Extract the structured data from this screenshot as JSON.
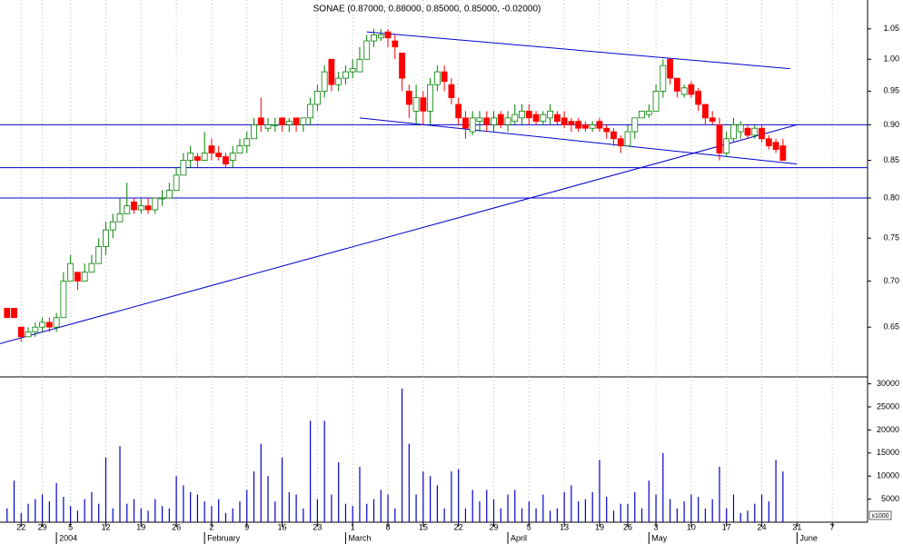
{
  "chart_data": [
    {
      "type": "candlestick",
      "title": "SONAE (0.87000, 0.88000, 0.85000, 0.85000, -0.02000)",
      "x": [
        0,
        1,
        2,
        3,
        4,
        5,
        6,
        7,
        8,
        9,
        10,
        11,
        12,
        13,
        14,
        15,
        16,
        17,
        18,
        19,
        20,
        21,
        22,
        23,
        24,
        25,
        26,
        27,
        28,
        29,
        30,
        31,
        32,
        33,
        34,
        35,
        36,
        37,
        38,
        39,
        40,
        41,
        42,
        43,
        44,
        45,
        46,
        47,
        48,
        49,
        50,
        51,
        52,
        53,
        54,
        55,
        56,
        57,
        58,
        59,
        60,
        61,
        62,
        63,
        64,
        65,
        66,
        67,
        68,
        69,
        70,
        71,
        72,
        73,
        74,
        75,
        76,
        77,
        78,
        79,
        80,
        81,
        82,
        83,
        84,
        85,
        86,
        87,
        88,
        89,
        90,
        91,
        92,
        93,
        94,
        95,
        96,
        97,
        98,
        99,
        100,
        101,
        102,
        103,
        104,
        105,
        106,
        107,
        108,
        109,
        110
      ],
      "open": [
        0.67,
        0.67,
        0.65,
        0.64,
        0.645,
        0.65,
        0.655,
        0.65,
        0.66,
        0.7,
        0.71,
        0.7,
        0.71,
        0.72,
        0.74,
        0.76,
        0.77,
        0.78,
        0.795,
        0.785,
        0.79,
        0.785,
        0.8,
        0.8,
        0.81,
        0.83,
        0.85,
        0.855,
        0.85,
        0.87,
        0.86,
        0.855,
        0.85,
        0.86,
        0.87,
        0.88,
        0.91,
        0.895,
        0.9,
        0.91,
        0.9,
        0.91,
        0.9,
        0.91,
        0.93,
        0.95,
        1.0,
        0.96,
        0.97,
        0.98,
        0.98,
        1.0,
        1.03,
        1.035,
        1.045,
        1.03,
        1.01,
        0.95,
        0.92,
        0.94,
        0.92,
        0.96,
        0.98,
        0.96,
        0.93,
        0.91,
        0.89,
        0.905,
        0.91,
        0.9,
        0.915,
        0.9,
        0.905,
        0.91,
        0.92,
        0.915,
        0.905,
        0.91,
        0.915,
        0.91,
        0.905,
        0.905,
        0.9,
        0.895,
        0.905,
        0.895,
        0.89,
        0.88,
        0.87,
        0.89,
        0.91,
        0.915,
        0.92,
        0.95,
        1.0,
        0.97,
        0.945,
        0.96,
        0.95,
        0.93,
        0.91,
        0.9,
        0.86,
        0.88,
        0.89,
        0.895,
        0.885,
        0.895,
        0.88,
        0.875,
        0.87
      ],
      "high": [
        0.67,
        0.67,
        0.65,
        0.65,
        0.655,
        0.66,
        0.66,
        0.665,
        0.71,
        0.73,
        0.71,
        0.72,
        0.73,
        0.75,
        0.77,
        0.78,
        0.8,
        0.82,
        0.8,
        0.8,
        0.8,
        0.8,
        0.81,
        0.82,
        0.84,
        0.86,
        0.87,
        0.86,
        0.89,
        0.88,
        0.87,
        0.86,
        0.87,
        0.88,
        0.89,
        0.91,
        0.94,
        0.91,
        0.91,
        0.91,
        0.91,
        0.91,
        0.91,
        0.94,
        0.96,
        0.99,
        1.0,
        0.98,
        0.99,
        1.0,
        1.02,
        1.04,
        1.05,
        1.05,
        1.05,
        1.04,
        1.01,
        0.96,
        0.96,
        0.95,
        0.97,
        0.99,
        0.99,
        0.97,
        0.94,
        0.92,
        0.92,
        0.92,
        0.92,
        0.92,
        0.92,
        0.92,
        0.93,
        0.93,
        0.93,
        0.92,
        0.92,
        0.93,
        0.92,
        0.92,
        0.91,
        0.91,
        0.905,
        0.905,
        0.91,
        0.9,
        0.895,
        0.885,
        0.9,
        0.91,
        0.92,
        0.93,
        0.96,
        1.0,
        1.0,
        0.97,
        0.96,
        0.965,
        0.955,
        0.93,
        0.92,
        0.91,
        0.89,
        0.91,
        0.905,
        0.9,
        0.9,
        0.9,
        0.885,
        0.88,
        0.88
      ],
      "low": [
        0.66,
        0.66,
        0.635,
        0.64,
        0.64,
        0.645,
        0.645,
        0.645,
        0.66,
        0.7,
        0.69,
        0.7,
        0.71,
        0.72,
        0.73,
        0.75,
        0.77,
        0.78,
        0.78,
        0.78,
        0.78,
        0.78,
        0.79,
        0.8,
        0.81,
        0.83,
        0.84,
        0.84,
        0.85,
        0.85,
        0.85,
        0.84,
        0.84,
        0.86,
        0.86,
        0.88,
        0.89,
        0.89,
        0.89,
        0.89,
        0.89,
        0.89,
        0.89,
        0.9,
        0.92,
        0.94,
        0.95,
        0.95,
        0.96,
        0.97,
        0.98,
        1.0,
        1.02,
        1.03,
        1.02,
        1.0,
        0.95,
        0.91,
        0.9,
        0.9,
        0.9,
        0.95,
        0.95,
        0.93,
        0.9,
        0.88,
        0.885,
        0.89,
        0.89,
        0.89,
        0.895,
        0.89,
        0.9,
        0.9,
        0.9,
        0.9,
        0.9,
        0.9,
        0.9,
        0.895,
        0.89,
        0.89,
        0.89,
        0.89,
        0.89,
        0.88,
        0.87,
        0.86,
        0.87,
        0.88,
        0.91,
        0.91,
        0.92,
        0.94,
        0.96,
        0.94,
        0.94,
        0.94,
        0.92,
        0.9,
        0.9,
        0.85,
        0.855,
        0.875,
        0.88,
        0.88,
        0.88,
        0.875,
        0.865,
        0.86,
        0.85
      ],
      "close": [
        0.66,
        0.66,
        0.64,
        0.645,
        0.65,
        0.655,
        0.65,
        0.66,
        0.7,
        0.72,
        0.7,
        0.71,
        0.72,
        0.74,
        0.76,
        0.77,
        0.78,
        0.79,
        0.785,
        0.79,
        0.785,
        0.8,
        0.8,
        0.81,
        0.83,
        0.85,
        0.86,
        0.85,
        0.86,
        0.86,
        0.855,
        0.845,
        0.86,
        0.87,
        0.88,
        0.9,
        0.9,
        0.9,
        0.9,
        0.9,
        0.905,
        0.9,
        0.91,
        0.93,
        0.95,
        0.98,
        0.96,
        0.97,
        0.98,
        0.985,
        1.0,
        1.03,
        1.04,
        1.04,
        1.035,
        1.02,
        0.97,
        0.93,
        0.94,
        0.92,
        0.96,
        0.98,
        0.965,
        0.94,
        0.91,
        0.895,
        0.91,
        0.91,
        0.9,
        0.91,
        0.9,
        0.91,
        0.915,
        0.92,
        0.91,
        0.905,
        0.915,
        0.92,
        0.905,
        0.9,
        0.9,
        0.895,
        0.895,
        0.9,
        0.895,
        0.89,
        0.88,
        0.87,
        0.89,
        0.91,
        0.92,
        0.92,
        0.95,
        0.99,
        0.97,
        0.95,
        0.955,
        0.945,
        0.93,
        0.91,
        0.905,
        0.86,
        0.88,
        0.9,
        0.9,
        0.885,
        0.895,
        0.88,
        0.87,
        0.865,
        0.85
      ],
      "up_color": "#008000",
      "down_color": "#ff0000",
      "line_color": "#0000cc",
      "log_scale": true,
      "xlim": [
        -1,
        122
      ],
      "ylim": [
        0.6,
        1.1
      ],
      "yticks": [
        0.65,
        {
          "value": 0.7,
          "label": "0.70"
        },
        0.75,
        {
          "value": 0.8,
          "label": "0.80"
        },
        0.85,
        {
          "value": 0.9,
          "label": "0.90"
        },
        0.95,
        {
          "value": 1,
          "label": "1.00"
        },
        1.05
      ],
      "hlines": [
        0.9,
        0.84,
        0.8
      ],
      "trendlines": [
        {
          "x": [
            -1,
            112
          ],
          "y": [
            0.633,
            0.9
          ]
        },
        {
          "x": [
            51,
            111
          ],
          "y": [
            1.045,
            0.985
          ]
        },
        {
          "x": [
            50,
            112
          ],
          "y": [
            0.91,
            0.845
          ]
        }
      ],
      "grid": true
    },
    {
      "type": "bar",
      "values": [
        3000,
        9000,
        2000,
        4000,
        5000,
        6000,
        4500,
        8500,
        5500,
        3500,
        2500,
        5000,
        6500,
        4000,
        14000,
        3000,
        16500,
        4000,
        5000,
        3000,
        2500,
        5000,
        3500,
        3000,
        10000,
        8000,
        6500,
        6000,
        4500,
        3500,
        5000,
        2000,
        3000,
        4500,
        7000,
        11000,
        17000,
        10000,
        4500,
        14000,
        6500,
        6000,
        3000,
        22000,
        5000,
        22000,
        6000,
        13000,
        4000,
        3500,
        12000,
        4000,
        5000,
        7000,
        6000,
        3000,
        29000,
        17000,
        6000,
        11000,
        10000,
        8000,
        3000,
        11000,
        11500,
        3000,
        7000,
        4500,
        7000,
        5000,
        3000,
        6000,
        7000,
        3000,
        4500,
        3000,
        6000,
        2500,
        3000,
        6500,
        8000,
        4500,
        5000,
        6500,
        13500,
        5500,
        2500,
        4000,
        4000,
        6500,
        3000,
        9000,
        6000,
        15000,
        5000,
        3000,
        4500,
        6000,
        5500,
        3000,
        5000,
        12000,
        3000,
        6000,
        2000,
        2500,
        4000,
        6000,
        4500,
        13500,
        11000
      ],
      "color": "#0000cc",
      "y_axis_label": "x1000",
      "xlim": [
        -1,
        122
      ],
      "ylim": [
        0,
        31500
      ],
      "yticks": [
        5000,
        10000,
        15000,
        20000,
        25000,
        30000
      ],
      "xticks": [
        {
          "value": 2,
          "label": "22"
        },
        {
          "value": 5,
          "label": "29"
        },
        {
          "value": 9,
          "label": "5"
        },
        {
          "value": 14,
          "label": "12"
        },
        {
          "value": 19,
          "label": "19"
        },
        {
          "value": 24,
          "label": "26"
        },
        {
          "value": 29,
          "label": "2"
        },
        {
          "value": 34,
          "label": "9"
        },
        {
          "value": 39,
          "label": "16"
        },
        {
          "value": 44,
          "label": "23"
        },
        {
          "value": 49,
          "label": "1"
        },
        {
          "value": 54,
          "label": "8"
        },
        {
          "value": 59,
          "label": "15"
        },
        {
          "value": 64,
          "label": "22"
        },
        {
          "value": 69,
          "label": "29"
        },
        {
          "value": 74,
          "label": "5"
        },
        {
          "value": 79,
          "label": "13"
        },
        {
          "value": 84,
          "label": "19"
        },
        {
          "value": 88,
          "label": "26"
        },
        {
          "value": 92,
          "label": "3"
        },
        {
          "value": 97,
          "label": "10"
        },
        {
          "value": 102,
          "label": "17"
        },
        {
          "value": 107,
          "label": "24"
        },
        {
          "value": 112,
          "label": "31"
        },
        {
          "value": 117,
          "label": "7"
        }
      ],
      "months": [
        {
          "value": 7,
          "label": "2004"
        },
        {
          "value": 28,
          "label": "February"
        },
        {
          "value": 48,
          "label": "March"
        },
        {
          "value": 71,
          "label": "April"
        },
        {
          "value": 91,
          "label": "May"
        },
        {
          "value": 112,
          "label": "June"
        }
      ],
      "grid": true
    }
  ]
}
